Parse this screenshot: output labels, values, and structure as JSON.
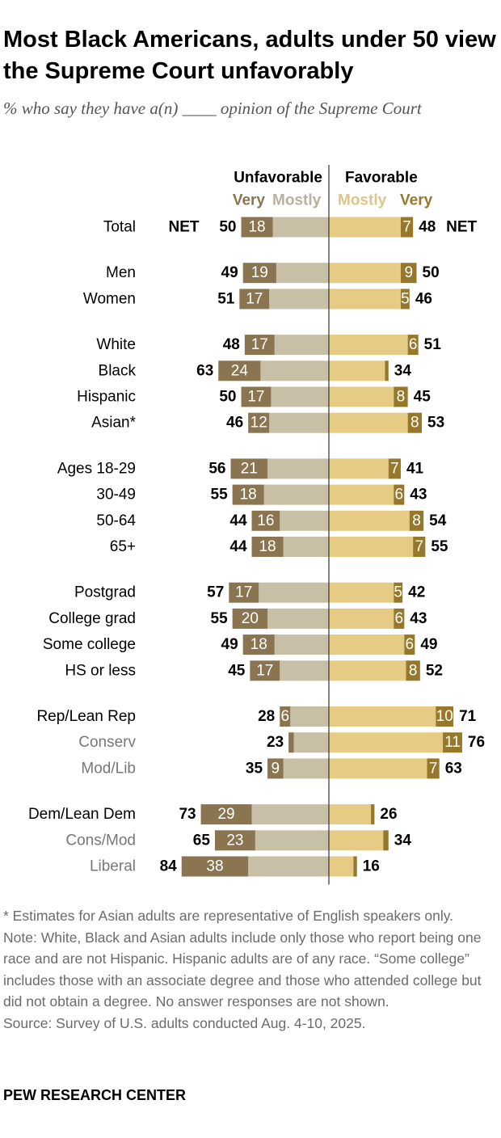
{
  "title": "Most Black Americans, adults under 50 view the Supreme Court unfavorably",
  "subtitle": "% who say they have a(n) ____ opinion of the Supreme Court",
  "colors": {
    "unfav_very": "#8b7550",
    "unfav_mostly": "#c8c0a6",
    "fav_mostly": "#e6cb85",
    "fav_very": "#97782a",
    "dark_label": "#000000",
    "sub_label": "#777777",
    "legend_light": "#ddc48a"
  },
  "chart_data": {
    "type": "bar",
    "layout": "diverging-stacked",
    "legend": {
      "unfavorable_header": "Unfavorable",
      "favorable_header": "Favorable",
      "unfav_very": "Very",
      "unfav_mostly": "Mostly",
      "fav_mostly": "Mostly",
      "fav_very": "Very",
      "net_label": "NET",
      "placement": "top"
    },
    "series": [
      {
        "name": "Very",
        "side": "unfavorable"
      },
      {
        "name": "Mostly",
        "side": "unfavorable"
      },
      {
        "name": "Mostly",
        "side": "favorable"
      },
      {
        "name": "Very",
        "side": "favorable"
      }
    ],
    "rows": [
      {
        "label": "Total",
        "group": 0,
        "sub": false,
        "net_unfav": 50,
        "unfav_very": 18,
        "net_fav": 48,
        "fav_very": 7,
        "show_net": true
      },
      {
        "label": "Men",
        "group": 1,
        "sub": false,
        "net_unfav": 49,
        "unfav_very": 19,
        "net_fav": 50,
        "fav_very": 9
      },
      {
        "label": "Women",
        "group": 1,
        "sub": false,
        "net_unfav": 51,
        "unfav_very": 17,
        "net_fav": 46,
        "fav_very": 5
      },
      {
        "label": "White",
        "group": 2,
        "sub": false,
        "net_unfav": 48,
        "unfav_very": 17,
        "net_fav": 51,
        "fav_very": 6
      },
      {
        "label": "Black",
        "group": 2,
        "sub": false,
        "net_unfav": 63,
        "unfav_very": 24,
        "net_fav": 34,
        "fav_very": 2,
        "hide_fav_very_label": true
      },
      {
        "label": "Hispanic",
        "group": 2,
        "sub": false,
        "net_unfav": 50,
        "unfav_very": 17,
        "net_fav": 45,
        "fav_very": 8
      },
      {
        "label": "Asian*",
        "group": 2,
        "sub": false,
        "net_unfav": 46,
        "unfav_very": 12,
        "net_fav": 53,
        "fav_very": 8
      },
      {
        "label": "Ages 18-29",
        "group": 3,
        "sub": false,
        "net_unfav": 56,
        "unfav_very": 21,
        "net_fav": 41,
        "fav_very": 7
      },
      {
        "label": "30-49",
        "group": 3,
        "sub": false,
        "net_unfav": 55,
        "unfav_very": 18,
        "net_fav": 43,
        "fav_very": 6
      },
      {
        "label": "50-64",
        "group": 3,
        "sub": false,
        "net_unfav": 44,
        "unfav_very": 16,
        "net_fav": 54,
        "fav_very": 8
      },
      {
        "label": "65+",
        "group": 3,
        "sub": false,
        "net_unfav": 44,
        "unfav_very": 18,
        "net_fav": 55,
        "fav_very": 7
      },
      {
        "label": "Postgrad",
        "group": 4,
        "sub": false,
        "net_unfav": 57,
        "unfav_very": 17,
        "net_fav": 42,
        "fav_very": 5
      },
      {
        "label": "College grad",
        "group": 4,
        "sub": false,
        "net_unfav": 55,
        "unfav_very": 20,
        "net_fav": 43,
        "fav_very": 6
      },
      {
        "label": "Some college",
        "group": 4,
        "sub": false,
        "net_unfav": 49,
        "unfav_very": 18,
        "net_fav": 49,
        "fav_very": 6
      },
      {
        "label": "HS or less",
        "group": 4,
        "sub": false,
        "net_unfav": 45,
        "unfav_very": 17,
        "net_fav": 52,
        "fav_very": 8
      },
      {
        "label": "Rep/Lean Rep",
        "group": 5,
        "sub": false,
        "net_unfav": 28,
        "unfav_very": 6,
        "net_fav": 71,
        "fav_very": 10
      },
      {
        "label": "Conserv",
        "group": 5,
        "sub": true,
        "net_unfav": 23,
        "unfav_very": 3,
        "net_fav": 76,
        "fav_very": 11,
        "hide_unfav_very_label": true
      },
      {
        "label": "Mod/Lib",
        "group": 5,
        "sub": true,
        "net_unfav": 35,
        "unfav_very": 9,
        "net_fav": 63,
        "fav_very": 7
      },
      {
        "label": "Dem/Lean Dem",
        "group": 6,
        "sub": false,
        "net_unfav": 73,
        "unfav_very": 29,
        "net_fav": 26,
        "fav_very": 2,
        "hide_fav_very_label": true
      },
      {
        "label": "Cons/Mod",
        "group": 6,
        "sub": true,
        "net_unfav": 65,
        "unfav_very": 23,
        "net_fav": 34,
        "fav_very": 3,
        "hide_fav_very_label": true
      },
      {
        "label": "Liberal",
        "group": 6,
        "sub": true,
        "net_unfav": 84,
        "unfav_very": 38,
        "net_fav": 16,
        "fav_very": 2,
        "hide_fav_very_label": true
      }
    ]
  },
  "footnotes": {
    "asian": "* Estimates for Asian adults are representative of English speakers only.",
    "note": "Note: White, Black and Asian adults include only those who report being one race and are not Hispanic. Hispanic adults are of any race. “Some college” includes those with an associate degree and those who attended college but did not obtain a degree. No answer responses are not shown.",
    "source": "Source: Survey of U.S. adults conducted Aug. 4-10, 2025."
  },
  "brand": "PEW RESEARCH CENTER"
}
